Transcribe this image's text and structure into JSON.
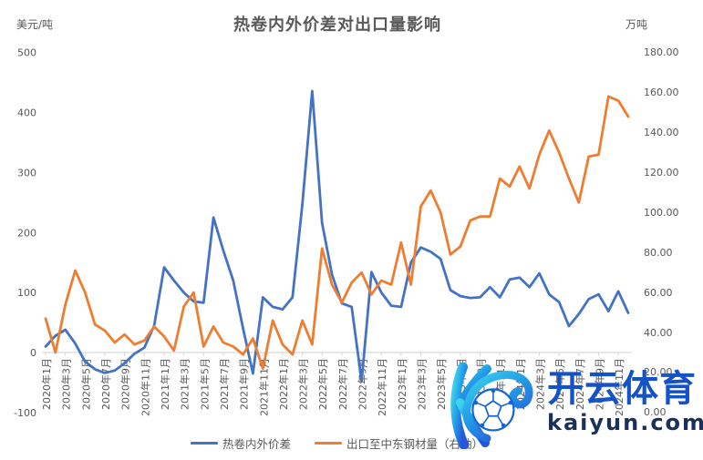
{
  "page": {
    "background": "#FFFFFF"
  },
  "chart": {
    "title": "热卷内外价差对出口量影响",
    "left_axis": {
      "unit": "美元/吨",
      "tick_labels": [
        "500",
        "400",
        "300",
        "200",
        "100",
        "0",
        "-100"
      ],
      "min": -100,
      "max": 500
    },
    "right_axis": {
      "unit": "万吨",
      "tick_labels": [
        "180.00",
        "160.00",
        "140.00",
        "120.00",
        "100.00",
        "80.00",
        "60.00",
        "40.00",
        "20.00",
        "0.00"
      ],
      "min": 0,
      "max": 180
    },
    "legend": {
      "items": [
        {
          "label": "热卷内外价差",
          "color": "#4472C4"
        },
        {
          "label": "出口至中东钢材量（右轴）",
          "color": "#ED7D31"
        }
      ]
    },
    "colors": {
      "axis_line": "#D9D9D9",
      "label_text": "#595959"
    }
  },
  "chart_data": {
    "type": "line",
    "x": [
      "2020年1月",
      "2020年2月",
      "2020年3月",
      "2020年4月",
      "2020年5月",
      "2020年6月",
      "2020年7月",
      "2020年8月",
      "2020年9月",
      "2020年10月",
      "2020年11月",
      "2020年12月",
      "2021年1月",
      "2021年2月",
      "2021年3月",
      "2021年4月",
      "2021年5月",
      "2021年6月",
      "2021年7月",
      "2021年8月",
      "2021年9月",
      "2021年10月",
      "2021年11月",
      "2021年12月",
      "2022年1月",
      "2022年2月",
      "2022年3月",
      "2022年4月",
      "2022年5月",
      "2022年6月",
      "2022年7月",
      "2022年8月",
      "2022年9月",
      "2022年10月",
      "2022年11月",
      "2022年12月",
      "2023年1月",
      "2023年2月",
      "2023年3月",
      "2023年4月",
      "2023年5月",
      "2023年6月",
      "2023年7月",
      "2023年8月",
      "2023年9月",
      "2023年10月",
      "2023年11月",
      "2023年12月",
      "2024年1月",
      "2024年2月",
      "2024年3月",
      "2024年4月",
      "2024年5月",
      "2024年6月",
      "2024年7月",
      "2024年8月",
      "2024年9月",
      "2024年10月",
      "2024年11月",
      "2024年12月"
    ],
    "x_tick_every": 2,
    "series": [
      {
        "name": "热卷内外价差",
        "axis": "left",
        "color": "#4472C4",
        "values": [
          10,
          28,
          38,
          15,
          -15,
          -28,
          -34,
          -30,
          -18,
          -2,
          8,
          45,
          142,
          120,
          100,
          85,
          83,
          225,
          170,
          120,
          40,
          -35,
          92,
          76,
          72,
          92,
          247,
          436,
          216,
          130,
          82,
          76,
          -48,
          134,
          100,
          78,
          76,
          150,
          175,
          168,
          156,
          104,
          94,
          91,
          92,
          109,
          92,
          122,
          125,
          109,
          132,
          97,
          84,
          44,
          64,
          89,
          97,
          69,
          102,
          66
        ]
      },
      {
        "name": "出口至中东钢材量（右轴）",
        "axis": "right",
        "color": "#ED7D31",
        "values": [
          47,
          30,
          54,
          71,
          60,
          44,
          41,
          35,
          39,
          34,
          36,
          43,
          38,
          31,
          53,
          60,
          33,
          43,
          35,
          33,
          29,
          37,
          22,
          46,
          34,
          29,
          46,
          34,
          82,
          64,
          55,
          65,
          70,
          59,
          66,
          64,
          85,
          64,
          103,
          111,
          100,
          79,
          83,
          96,
          98,
          98,
          117,
          113,
          123,
          112,
          129,
          141,
          130,
          117,
          105,
          128,
          129,
          158,
          156,
          148
        ]
      }
    ],
    "title": "热卷内外价差对出口量影响",
    "xlabel": "",
    "ylabel_left": "美元/吨",
    "ylabel_right": "万吨",
    "left_ylim": [
      -100,
      500
    ],
    "right_ylim": [
      0,
      180
    ],
    "grid": false,
    "legend_position": "bottom"
  },
  "watermark": {
    "brand": "开云体育",
    "domain": "kaiyun.com",
    "brand_color": "#1452C8",
    "domain_color": "#1B3159",
    "logo": "kaiyun-k-soccer-logo"
  }
}
